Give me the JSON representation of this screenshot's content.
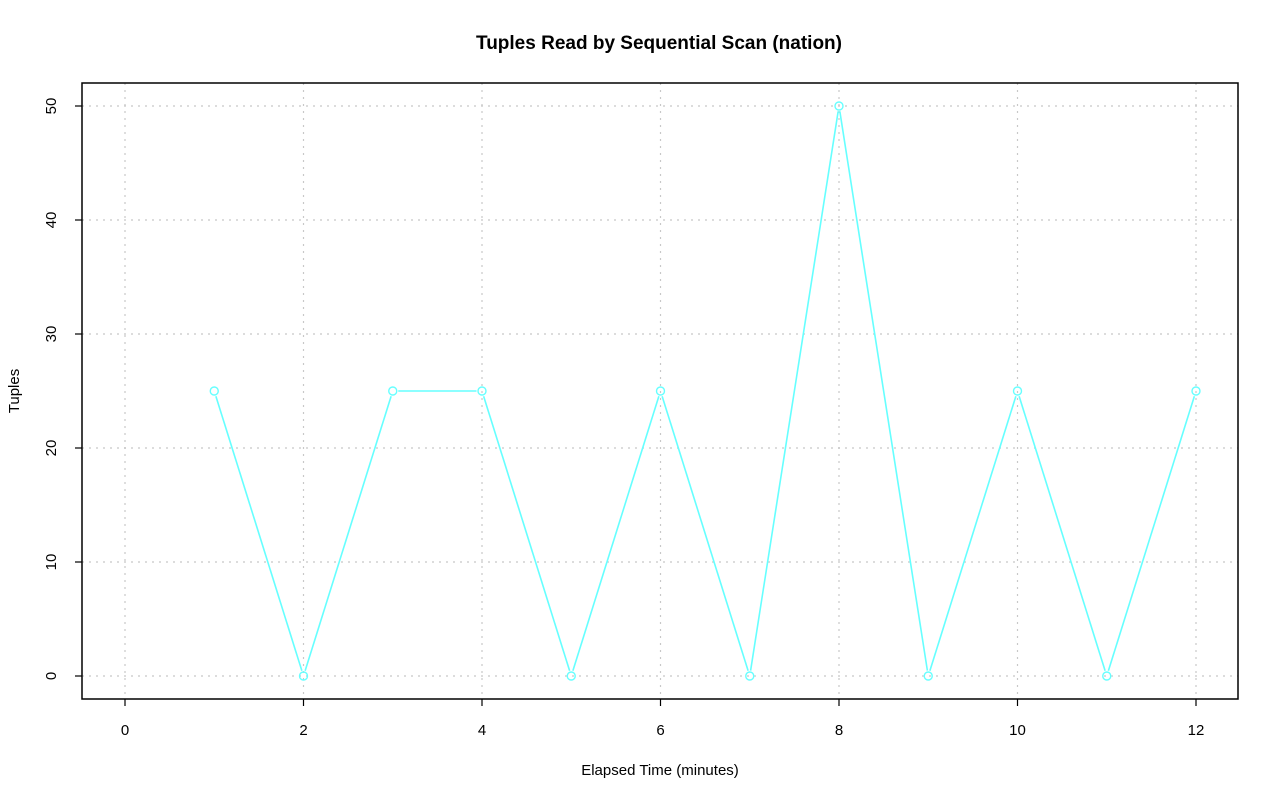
{
  "chart_data": {
    "type": "line",
    "title": "Tuples Read by Sequential Scan (nation)",
    "xlabel": "Elapsed Time (minutes)",
    "ylabel": "Tuples",
    "xlim": [
      0,
      12
    ],
    "ylim": [
      0,
      50
    ],
    "xticks": [
      0,
      2,
      4,
      6,
      8,
      10,
      12
    ],
    "yticks": [
      0,
      10,
      20,
      30,
      40,
      50
    ],
    "grid": true,
    "marker": "open-circle",
    "series": [
      {
        "color": "#66ffff",
        "x": [
          1,
          2,
          3,
          4,
          5,
          6,
          7,
          8,
          9,
          10,
          11,
          12
        ],
        "y": [
          25,
          0,
          25,
          25,
          0,
          25,
          0,
          50,
          0,
          25,
          0,
          25
        ]
      }
    ]
  }
}
